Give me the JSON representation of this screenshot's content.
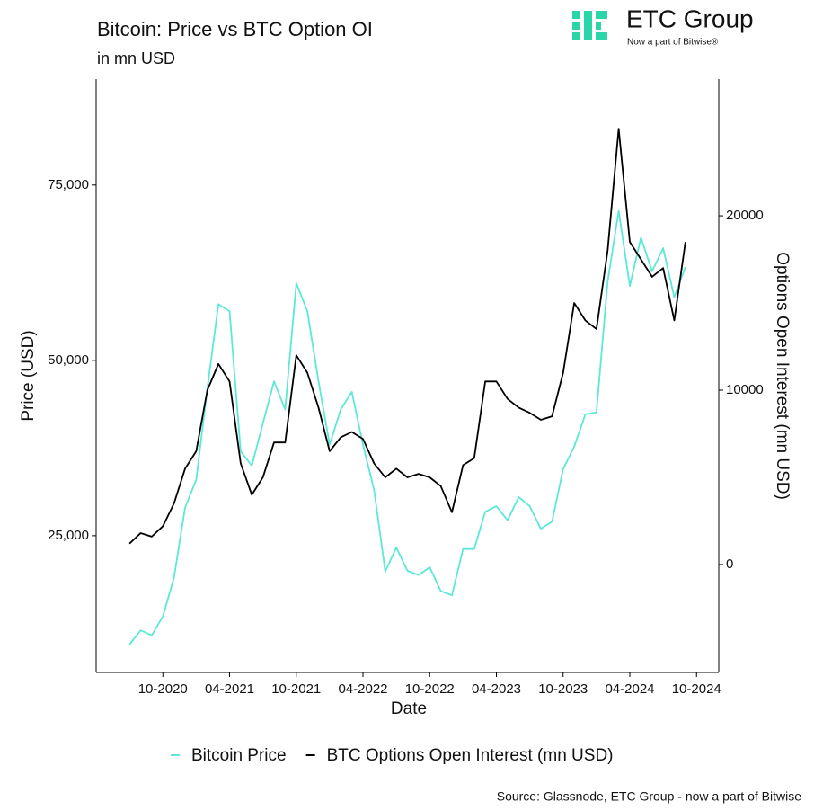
{
  "chart_data": {
    "type": "line",
    "title": "Bitcoin: Price vs BTC Option OI",
    "subtitle": "in mn USD",
    "x_label": "Date",
    "y_label": "Price (USD)",
    "y2_label": "Options Open Interest (mn USD)",
    "source": "Source: Glassnode, ETC Group - now a part of Bitwise",
    "logo": {
      "name": "ETC Group",
      "tagline": "Now a part of Bitwise®"
    },
    "x": [
      "2020-07",
      "2020-08",
      "2020-09",
      "2020-10",
      "2020-11",
      "2020-12",
      "2021-01",
      "2021-02",
      "2021-03",
      "2021-04",
      "2021-05",
      "2021-06",
      "2021-07",
      "2021-08",
      "2021-09",
      "2021-10",
      "2021-11",
      "2021-12",
      "2022-01",
      "2022-02",
      "2022-03",
      "2022-04",
      "2022-05",
      "2022-06",
      "2022-07",
      "2022-08",
      "2022-09",
      "2022-10",
      "2022-11",
      "2022-12",
      "2023-01",
      "2023-02",
      "2023-03",
      "2023-04",
      "2023-05",
      "2023-06",
      "2023-07",
      "2023-08",
      "2023-09",
      "2023-10",
      "2023-11",
      "2023-12",
      "2024-01",
      "2024-02",
      "2024-03",
      "2024-04",
      "2024-05",
      "2024-06",
      "2024-07",
      "2024-08",
      "2024-09"
    ],
    "series": [
      {
        "name": "Bitcoin Price",
        "color": "#5ce8d6",
        "values": [
          9500,
          11500,
          10800,
          13500,
          19000,
          29000,
          33000,
          46000,
          58000,
          57000,
          37000,
          35000,
          41000,
          47000,
          43000,
          61000,
          57000,
          47000,
          38000,
          43000,
          45500,
          38000,
          31500,
          19900,
          23300,
          20000,
          19400,
          20500,
          17100,
          16500,
          23100,
          23100,
          28400,
          29200,
          27200,
          30500,
          29200,
          26000,
          27000,
          34500,
          37700,
          42300,
          42600,
          61200,
          71300,
          60600,
          67500,
          62700,
          66000,
          59000,
          63300
        ]
      },
      {
        "name": "BTC Options Open Interest (mn USD)",
        "color": "#000000",
        "axis": "y2",
        "values": [
          1200,
          1800,
          1600,
          2200,
          3500,
          5500,
          6500,
          10000,
          11500,
          10500,
          5800,
          4000,
          5000,
          7000,
          7000,
          12000,
          11000,
          9000,
          6500,
          7300,
          7600,
          7200,
          5800,
          5000,
          5500,
          5000,
          5200,
          5000,
          4500,
          3000,
          5700,
          6100,
          10500,
          10500,
          9500,
          9000,
          8700,
          8300,
          8500,
          11000,
          15000,
          14000,
          13500,
          18000,
          25000,
          18500,
          17500,
          16500,
          17000,
          14000,
          18500
        ]
      }
    ],
    "xlim": [
      "2020-04",
      "2024-12"
    ],
    "xticks": [
      {
        "value": "2020-10",
        "label": "10-2020"
      },
      {
        "value": "2021-04",
        "label": "04-2021"
      },
      {
        "value": "2021-10",
        "label": "10-2021"
      },
      {
        "value": "2022-04",
        "label": "04-2022"
      },
      {
        "value": "2022-10",
        "label": "10-2022"
      },
      {
        "value": "2023-04",
        "label": "04-2023"
      },
      {
        "value": "2023-10",
        "label": "10-2023"
      },
      {
        "value": "2024-04",
        "label": "04-2024"
      },
      {
        "value": "2024-10",
        "label": "10-2024"
      }
    ],
    "ylim": [
      5500,
      90100
    ],
    "yticks": [
      {
        "value": 25000,
        "label": "25,000"
      },
      {
        "value": 50000,
        "label": "50,000"
      },
      {
        "value": 75000,
        "label": "75,000"
      }
    ],
    "y2lim": [
      -6190,
      27840
    ],
    "y2ticks": [
      0,
      10000,
      20000
    ],
    "grid": false,
    "legend": "bottom"
  }
}
